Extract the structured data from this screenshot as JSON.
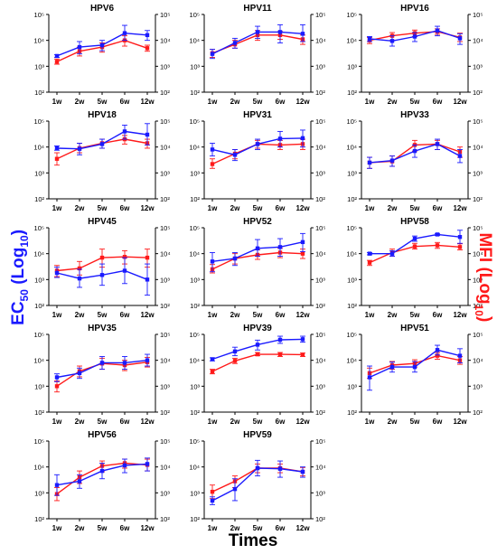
{
  "colors": {
    "ec50": "#1a1aff",
    "mfi": "#ff1a1a"
  },
  "y_axis_left": {
    "label_main": "EC",
    "label_sub": "50",
    "label_paren_open": " (Log",
    "label_paren_sub": "10",
    "label_paren_close": ")"
  },
  "y_axis_right": {
    "label_main": "MFI (Log",
    "label_sub": "10",
    "label_close": ")"
  },
  "x_axis_label": "Times",
  "chart_data": [
    {
      "type": "line",
      "title": "HPV6",
      "categories": [
        "1w",
        "2w",
        "5w",
        "6w",
        "12w"
      ],
      "yscale": "log",
      "ylim": [
        100,
        100000
      ],
      "y_ticks": [
        "10²",
        "10³",
        "10⁴",
        "10⁵"
      ],
      "series": [
        {
          "values": [
            2500,
            5500,
            6500,
            19000,
            16000
          ],
          "err": [
            [
              2200,
              2800
            ],
            [
              3000,
              9000
            ],
            [
              4000,
              10000
            ],
            [
              10000,
              38000
            ],
            [
              10000,
              24000
            ]
          ]
        },
        {
          "values": [
            1500,
            3800,
            5500,
            10000,
            5000
          ],
          "err": [
            [
              1200,
              1900
            ],
            [
              2500,
              5500
            ],
            [
              3500,
              8000
            ],
            [
              6000,
              15000
            ],
            [
              3800,
              6500
            ]
          ]
        }
      ]
    },
    {
      "type": "line",
      "title": "HPV11",
      "categories": [
        "1w",
        "2w",
        "5w",
        "6w",
        "12w"
      ],
      "yscale": "log",
      "ylim": [
        100,
        100000
      ],
      "y_ticks": [
        "10²",
        "10³",
        "10⁴",
        "10⁵"
      ],
      "series": [
        {
          "values": [
            3000,
            8000,
            21000,
            21000,
            18000
          ],
          "err": [
            [
              2000,
              4500
            ],
            [
              5000,
              12000
            ],
            [
              12000,
              35000
            ],
            [
              8000,
              40000
            ],
            [
              9000,
              40000
            ]
          ]
        },
        {
          "values": [
            3200,
            7000,
            16000,
            16000,
            11000
          ],
          "err": [
            [
              2200,
              4500
            ],
            [
              5000,
              10000
            ],
            [
              10000,
              24000
            ],
            [
              11000,
              22000
            ],
            [
              7000,
              16000
            ]
          ]
        }
      ]
    },
    {
      "type": "line",
      "title": "HPV16",
      "categories": [
        "1w",
        "2w",
        "5w",
        "6w",
        "12w"
      ],
      "yscale": "log",
      "ylim": [
        100,
        100000
      ],
      "y_ticks": [
        "10²",
        "10³",
        "10⁴",
        "10⁵"
      ],
      "series": [
        {
          "values": [
            11500,
            9500,
            14000,
            24000,
            12000
          ],
          "err": [
            [
              9000,
              14000
            ],
            [
              6000,
              15000
            ],
            [
              9000,
              20000
            ],
            [
              15000,
              35000
            ],
            [
              7000,
              18000
            ]
          ]
        },
        {
          "values": [
            10000,
            15000,
            19000,
            22000,
            13000
          ],
          "err": [
            [
              7500,
              13000
            ],
            [
              10000,
              20000
            ],
            [
              14000,
              25000
            ],
            [
              17000,
              28000
            ],
            [
              9000,
              19000
            ]
          ]
        }
      ]
    },
    {
      "type": "line",
      "title": "HPV18",
      "categories": [
        "1w",
        "2w",
        "5w",
        "6w",
        "12w"
      ],
      "yscale": "log",
      "ylim": [
        100,
        100000
      ],
      "y_ticks": [
        "10²",
        "10³",
        "10⁴",
        "10⁵"
      ],
      "series": [
        {
          "values": [
            9000,
            8500,
            13000,
            40000,
            30000
          ],
          "err": [
            [
              7500,
              11000
            ],
            [
              5000,
              14000
            ],
            [
              9000,
              20000
            ],
            [
              20000,
              70000
            ],
            [
              12000,
              80000
            ]
          ]
        },
        {
          "values": [
            3500,
            9000,
            14000,
            20000,
            14000
          ],
          "err": [
            [
              2000,
              6000
            ],
            [
              6000,
              14000
            ],
            [
              9000,
              20000
            ],
            [
              13000,
              28000
            ],
            [
              9000,
              20000
            ]
          ]
        }
      ]
    },
    {
      "type": "line",
      "title": "HPV31",
      "categories": [
        "1w",
        "2w",
        "5w",
        "6w",
        "12w"
      ],
      "yscale": "log",
      "ylim": [
        100,
        100000
      ],
      "y_ticks": [
        "10²",
        "10³",
        "10⁴",
        "10⁵"
      ],
      "series": [
        {
          "values": [
            8000,
            5000,
            13000,
            21000,
            22000
          ],
          "err": [
            [
              4500,
              14000
            ],
            [
              3000,
              8000
            ],
            [
              8000,
              20000
            ],
            [
              10000,
              40000
            ],
            [
              10000,
              45000
            ]
          ]
        },
        {
          "values": [
            2200,
            5500,
            13000,
            12000,
            13000
          ],
          "err": [
            [
              1500,
              3500
            ],
            [
              3500,
              8000
            ],
            [
              9000,
              18000
            ],
            [
              8000,
              18000
            ],
            [
              8000,
              20000
            ]
          ]
        }
      ]
    },
    {
      "type": "line",
      "title": "HPV33",
      "categories": [
        "1w",
        "2w",
        "5w",
        "6w",
        "12w"
      ],
      "yscale": "log",
      "ylim": [
        100,
        100000
      ],
      "y_ticks": [
        "10²",
        "10³",
        "10⁴",
        "10⁵"
      ],
      "series": [
        {
          "values": [
            2500,
            3000,
            7000,
            13000,
            4500
          ],
          "err": [
            [
              1500,
              4000
            ],
            [
              1800,
              4500
            ],
            [
              4000,
              12000
            ],
            [
              8000,
              20000
            ],
            [
              2500,
              8000
            ]
          ]
        },
        {
          "values": [
            2500,
            2800,
            12000,
            13000,
            6500
          ],
          "err": [
            [
              1500,
              4000
            ],
            [
              1800,
              4500
            ],
            [
              7000,
              18000
            ],
            [
              8000,
              18000
            ],
            [
              4000,
              10000
            ]
          ]
        }
      ]
    },
    {
      "type": "line",
      "title": "HPV45",
      "categories": [
        "1w",
        "2w",
        "5w",
        "6w",
        "12w"
      ],
      "yscale": "log",
      "ylim": [
        100,
        100000
      ],
      "y_ticks": [
        "10²",
        "10³",
        "10⁴",
        "10⁵"
      ],
      "series": [
        {
          "values": [
            1800,
            1100,
            1500,
            2200,
            1000
          ],
          "err": [
            [
              1200,
              3000
            ],
            [
              500,
              2500
            ],
            [
              600,
              4000
            ],
            [
              700,
              7000
            ],
            [
              250,
              4000
            ]
          ]
        },
        {
          "values": [
            2200,
            2700,
            7000,
            7500,
            7000
          ],
          "err": [
            [
              1300,
              3500
            ],
            [
              1500,
              5000
            ],
            [
              3000,
              15000
            ],
            [
              4000,
              13000
            ],
            [
              3000,
              15000
            ]
          ]
        }
      ]
    },
    {
      "type": "line",
      "title": "HPV52",
      "categories": [
        "1w",
        "2w",
        "5w",
        "6w",
        "12w"
      ],
      "yscale": "log",
      "ylim": [
        100,
        100000
      ],
      "y_ticks": [
        "10²",
        "10³",
        "10⁴",
        "10⁵"
      ],
      "series": [
        {
          "values": [
            5000,
            6500,
            16000,
            18000,
            28000
          ],
          "err": [
            [
              2000,
              11000
            ],
            [
              3500,
              11000
            ],
            [
              8000,
              35000
            ],
            [
              8000,
              38000
            ],
            [
              12000,
              60000
            ]
          ]
        },
        {
          "values": [
            2500,
            6500,
            9000,
            11000,
            10000
          ],
          "err": [
            [
              1800,
              3800
            ],
            [
              4000,
              10000
            ],
            [
              6000,
              14000
            ],
            [
              7000,
              16000
            ],
            [
              6500,
              15000
            ]
          ]
        }
      ]
    },
    {
      "type": "line",
      "title": "HPV58",
      "categories": [
        "1w",
        "2w",
        "5w",
        "6w",
        "12w"
      ],
      "yscale": "log",
      "ylim": [
        100,
        100000
      ],
      "y_ticks": [
        "10²",
        "10³",
        "10⁴",
        "10⁵"
      ],
      "series": [
        {
          "values": [
            10000,
            10000,
            38000,
            55000,
            44000
          ],
          "err": [
            [
              9000,
              11000
            ],
            [
              8000,
              13000
            ],
            [
              30000,
              48000
            ],
            [
              50000,
              60000
            ],
            [
              25000,
              80000
            ]
          ]
        },
        {
          "values": [
            4500,
            11000,
            19000,
            21000,
            18000
          ],
          "err": [
            [
              3500,
              5500
            ],
            [
              8000,
              15000
            ],
            [
              15000,
              25000
            ],
            [
              16000,
              27000
            ],
            [
              14000,
              24000
            ]
          ]
        }
      ]
    },
    {
      "type": "line",
      "title": "HPV35",
      "categories": [
        "1w",
        "2w",
        "5w",
        "6w",
        "12w"
      ],
      "yscale": "log",
      "ylim": [
        100,
        100000
      ],
      "y_ticks": [
        "10²",
        "10³",
        "10⁴",
        "10⁵"
      ],
      "series": [
        {
          "values": [
            2200,
            3200,
            8000,
            8000,
            10000
          ],
          "err": [
            [
              1500,
              3000
            ],
            [
              2000,
              5000
            ],
            [
              4500,
              14000
            ],
            [
              4500,
              14000
            ],
            [
              6000,
              17000
            ]
          ]
        },
        {
          "values": [
            1000,
            3800,
            7500,
            6500,
            8500
          ],
          "err": [
            [
              600,
              1600
            ],
            [
              2300,
              6000
            ],
            [
              4500,
              12000
            ],
            [
              4000,
              10000
            ],
            [
              5500,
              13000
            ]
          ]
        }
      ]
    },
    {
      "type": "line",
      "title": "HPV39",
      "categories": [
        "1w",
        "2w",
        "5w",
        "6w",
        "12w"
      ],
      "yscale": "log",
      "ylim": [
        100,
        100000
      ],
      "y_ticks": [
        "10²",
        "10³",
        "10⁴",
        "10⁵"
      ],
      "series": [
        {
          "values": [
            11000,
            22000,
            40000,
            62000,
            65000
          ],
          "err": [
            [
              9500,
              12500
            ],
            [
              15000,
              32000
            ],
            [
              25000,
              60000
            ],
            [
              45000,
              85000
            ],
            [
              50000,
              85000
            ]
          ]
        },
        {
          "values": [
            3700,
            9500,
            17000,
            17000,
            16500
          ],
          "err": [
            [
              3000,
              4500
            ],
            [
              7500,
              12000
            ],
            [
              15000,
              20000
            ],
            [
              14000,
              20000
            ],
            [
              14000,
              19000
            ]
          ]
        }
      ]
    },
    {
      "type": "line",
      "title": "HPV51",
      "categories": [
        "1w",
        "2w",
        "5w",
        "6w",
        "12w"
      ],
      "yscale": "log",
      "ylim": [
        100,
        100000
      ],
      "y_ticks": [
        "10²",
        "10³",
        "10⁴",
        "10⁵"
      ],
      "series": [
        {
          "values": [
            2200,
            5500,
            5500,
            25000,
            15000
          ],
          "err": [
            [
              700,
              6000
            ],
            [
              3500,
              8500
            ],
            [
              3500,
              9000
            ],
            [
              16000,
              38000
            ],
            [
              8000,
              28000
            ]
          ]
        },
        {
          "values": [
            3200,
            6500,
            7500,
            15000,
            10000
          ],
          "err": [
            [
              2000,
              5000
            ],
            [
              4500,
              9000
            ],
            [
              5500,
              10500
            ],
            [
              11000,
              20000
            ],
            [
              7000,
              14000
            ]
          ]
        }
      ]
    },
    {
      "type": "line",
      "title": "HPV56",
      "categories": [
        "1w",
        "2w",
        "5w",
        "6w",
        "12w"
      ],
      "yscale": "log",
      "ylim": [
        100,
        100000
      ],
      "y_ticks": [
        "10²",
        "10³",
        "10⁴",
        "10⁵"
      ],
      "series": [
        {
          "values": [
            2000,
            2800,
            7000,
            11500,
            13000
          ],
          "err": [
            [
              800,
              5000
            ],
            [
              1500,
              5000
            ],
            [
              3500,
              14000
            ],
            [
              6000,
              20000
            ],
            [
              7000,
              22000
            ]
          ]
        },
        {
          "values": [
            900,
            4000,
            11000,
            14000,
            12000
          ],
          "err": [
            [
              500,
              1600
            ],
            [
              2300,
              7000
            ],
            [
              6500,
              17000
            ],
            [
              9000,
              20000
            ],
            [
              7000,
              20000
            ]
          ]
        }
      ]
    },
    {
      "type": "line",
      "title": "HPV59",
      "categories": [
        "1w",
        "2w",
        "5w",
        "6w",
        "12w"
      ],
      "yscale": "log",
      "ylim": [
        100,
        100000
      ],
      "y_ticks": [
        "10²",
        "10³",
        "10⁴",
        "10⁵"
      ],
      "series": [
        {
          "values": [
            500,
            1400,
            9000,
            8500,
            6500
          ],
          "err": [
            [
              350,
              700
            ],
            [
              500,
              3500
            ],
            [
              4500,
              18000
            ],
            [
              4000,
              17000
            ],
            [
              4000,
              10000
            ]
          ]
        },
        {
          "values": [
            1100,
            2800,
            9000,
            9000,
            6500
          ],
          "err": [
            [
              600,
              2000
            ],
            [
              1600,
              4500
            ],
            [
              6000,
              13000
            ],
            [
              6000,
              13000
            ],
            [
              4500,
              9500
            ]
          ]
        }
      ]
    }
  ]
}
